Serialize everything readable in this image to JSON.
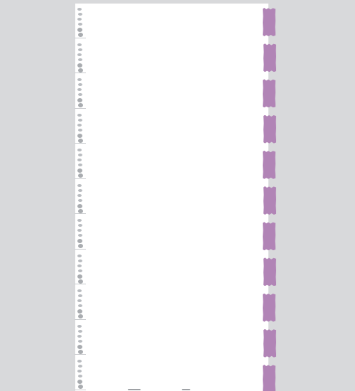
{
  "page": {
    "background_color": "#d8d9db",
    "sheet_color": "#ffffff",
    "tab_color": "#b184b6",
    "binding_color": "#b9bcc0"
  },
  "left_binding": {
    "icon": "spiral-binding-icon",
    "segment_count": 11,
    "holes_per_segment": 6
  },
  "right_tabs": {
    "icon": "divider-tab-icon",
    "count": 11
  }
}
